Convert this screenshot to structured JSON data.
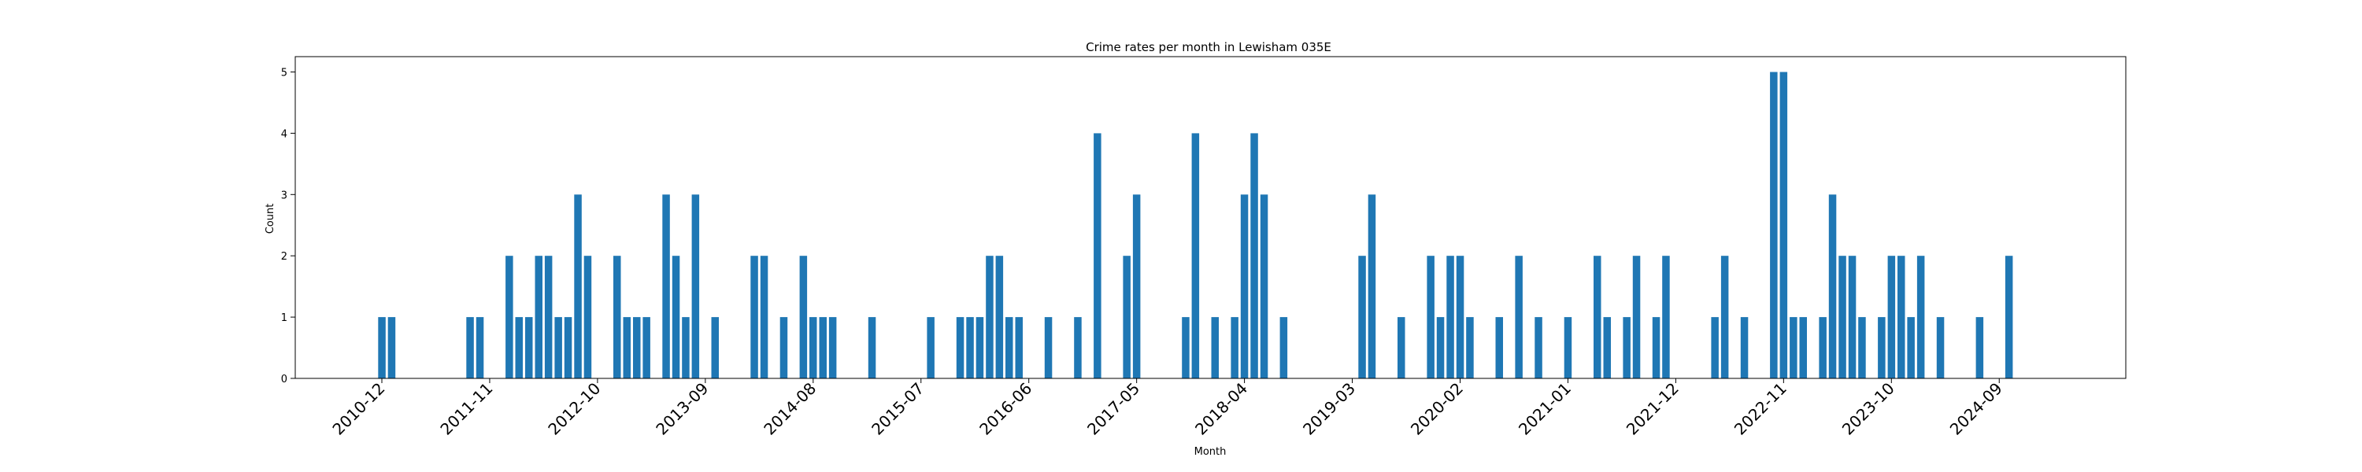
{
  "chart_data": {
    "type": "bar",
    "title": "Crime rates per month in Lewisham 035E",
    "xlabel": "Month",
    "ylabel": "Count",
    "ylim": [
      0,
      5.25
    ],
    "yticks": [
      "0",
      "1",
      "2",
      "3",
      "4",
      "5"
    ],
    "x_tick_labels": [
      "2010-12",
      "2011-11",
      "2012-10",
      "2013-09",
      "2014-08",
      "2015-07",
      "2016-06",
      "2017-05",
      "2018-04",
      "2019-03",
      "2020-02",
      "2021-01",
      "2021-12",
      "2022-11",
      "2023-10",
      "2024-09"
    ],
    "grid": false,
    "color": "#1f77b4",
    "categories": [
      "2010-12",
      "2011-01",
      "2011-09",
      "2011-10",
      "2012-01",
      "2012-02",
      "2012-03",
      "2012-04",
      "2012-05",
      "2012-06",
      "2012-07",
      "2012-08",
      "2012-09",
      "2012-12",
      "2013-01",
      "2013-02",
      "2013-03",
      "2013-05",
      "2013-06",
      "2013-07",
      "2013-08",
      "2013-10",
      "2014-02",
      "2014-03",
      "2014-05",
      "2014-07",
      "2014-08",
      "2014-09",
      "2014-10",
      "2015-02",
      "2015-08",
      "2015-11",
      "2015-12",
      "2016-01",
      "2016-02",
      "2016-03",
      "2016-04",
      "2016-05",
      "2016-08",
      "2016-11",
      "2017-01",
      "2017-04",
      "2017-05",
      "2017-10",
      "2017-11",
      "2018-01",
      "2018-03",
      "2018-04",
      "2018-05",
      "2018-06",
      "2018-08",
      "2019-04",
      "2019-05",
      "2019-08",
      "2019-11",
      "2019-12",
      "2020-01",
      "2020-02",
      "2020-03",
      "2020-06",
      "2020-08",
      "2020-10",
      "2021-01",
      "2021-04",
      "2021-05",
      "2021-07",
      "2021-08",
      "2021-10",
      "2021-11",
      "2022-04",
      "2022-05",
      "2022-07",
      "2022-10",
      "2022-11",
      "2022-12",
      "2023-01",
      "2023-03",
      "2023-04",
      "2023-05",
      "2023-06",
      "2023-07",
      "2023-09",
      "2023-10",
      "2023-11",
      "2023-12",
      "2024-01",
      "2024-03",
      "2024-07",
      "2024-10"
    ],
    "values": [
      1,
      1,
      1,
      1,
      2,
      1,
      1,
      2,
      2,
      1,
      1,
      3,
      2,
      2,
      1,
      1,
      1,
      3,
      2,
      1,
      3,
      1,
      2,
      2,
      1,
      2,
      1,
      1,
      1,
      1,
      1,
      1,
      1,
      1,
      2,
      2,
      1,
      1,
      1,
      1,
      4,
      2,
      3,
      1,
      4,
      1,
      1,
      3,
      4,
      3,
      1,
      2,
      3,
      1,
      2,
      1,
      2,
      2,
      1,
      1,
      2,
      1,
      1,
      2,
      1,
      1,
      2,
      1,
      2,
      1,
      2,
      1,
      5,
      5,
      1,
      1,
      1,
      3,
      2,
      2,
      1,
      1,
      2,
      2,
      1,
      2,
      1,
      1,
      2
    ]
  }
}
